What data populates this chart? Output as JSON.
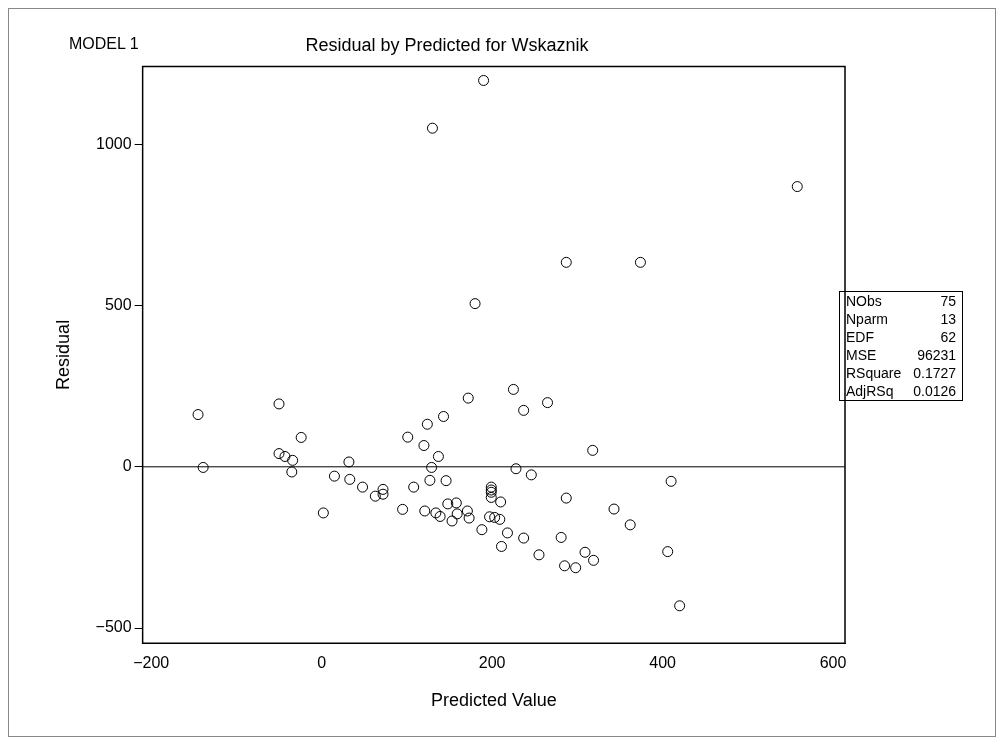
{
  "chart_data": {
    "type": "scatter",
    "title": "Residual by Predicted for Wskaznik",
    "xlabel": "Predicted Value",
    "ylabel": "Residual",
    "xlim": [
      -210,
      614
    ],
    "ylim": [
      -547,
      1241
    ],
    "xticks": [
      {
        "value": -200,
        "label": "−200"
      },
      0,
      200,
      400,
      600
    ],
    "yticks": [
      {
        "value": -500,
        "label": "−500"
      },
      0,
      500,
      1000
    ],
    "grid": false,
    "legend": false,
    "marker": "circle",
    "ref_lines": [
      {
        "axis": "y",
        "value": 0,
        "color": "#000000"
      }
    ],
    "annotations": [
      "MODEL 1",
      "NObs",
      "75",
      "Nparm",
      "13",
      "EDF",
      "62",
      "MSE",
      "96231",
      "RSquare",
      "0.1727",
      "AdjRSq",
      "0.0126"
    ],
    "series": [
      {
        "color": "#000000",
        "x": [
          -145,
          -139,
          -50,
          -24,
          -50,
          -43,
          -34,
          -35,
          32,
          15,
          33,
          48,
          72,
          72,
          63,
          2,
          101,
          124,
          143,
          172,
          120,
          137,
          129,
          127,
          146,
          108,
          95,
          121,
          134,
          139,
          148,
          158,
          159,
          153,
          171,
          173,
          188,
          199,
          199,
          199,
          199,
          210,
          197,
          203,
          209,
          218,
          211,
          225,
          237,
          265,
          318,
          228,
          246,
          410,
          287,
          343,
          362,
          237,
          255,
          281,
          285,
          298,
          309,
          319,
          406,
          420,
          190,
          130,
          180,
          558,
          287,
          374
        ],
        "values": [
          162,
          -2,
          195,
          91,
          41,
          32,
          20,
          -16,
          15,
          -29,
          -39,
          -63,
          -70,
          -85,
          -91,
          -143,
          92,
          132,
          156,
          213,
          66,
          32,
          -2,
          -42,
          -43,
          -63,
          -132,
          -137,
          -143,
          -154,
          -115,
          -112,
          -146,
          -168,
          -137,
          -159,
          -195,
          -63,
          -72,
          -79,
          -95,
          -109,
          -155,
          -157,
          -163,
          -205,
          -247,
          240,
          175,
          199,
          51,
          -6,
          -25,
          -45,
          -97,
          -131,
          -180,
          -221,
          -273,
          -219,
          -307,
          -313,
          -265,
          -290,
          -263,
          -431,
          1198,
          1050,
          506,
          869,
          634,
          634
        ]
      }
    ]
  }
}
